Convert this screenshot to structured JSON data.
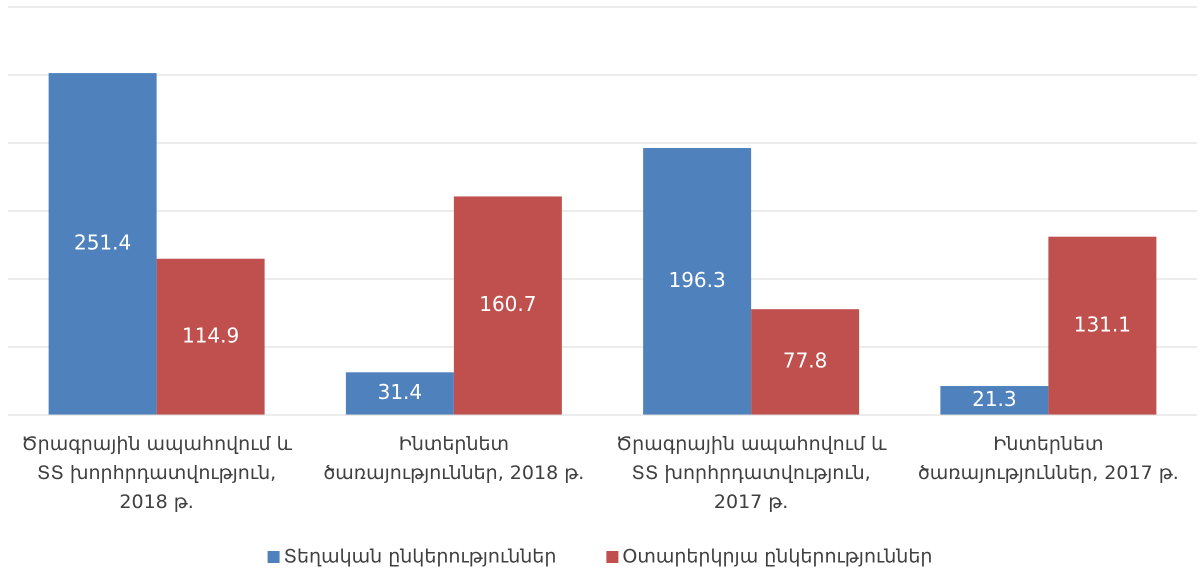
{
  "chart_data": {
    "type": "bar",
    "categories": [
      "Ծրագրային ապահովում և ՏՏ խորհրդատվություն, 2018 թ.",
      "Ինտերնետ ծառայություններ, 2018 թ.",
      "Ծրագրային ապահովում և ՏՏ խորհրդատվություն, 2017 թ.",
      "Ինտերնետ ծառայություններ, 2017 թ."
    ],
    "series": [
      {
        "name": "Տեղական ընկերություններ",
        "color": "#4f81bd",
        "values": [
          251.4,
          31.4,
          196.3,
          21.3
        ]
      },
      {
        "name": "Օտարերկրյա ընկերություններ",
        "color": "#c0504d",
        "values": [
          114.9,
          160.7,
          77.8,
          131.1
        ]
      }
    ],
    "ylim": [
      0,
      300
    ],
    "yticks": [
      0,
      50,
      100,
      150,
      200,
      250,
      300
    ],
    "grid": true,
    "legend": "bottom"
  }
}
